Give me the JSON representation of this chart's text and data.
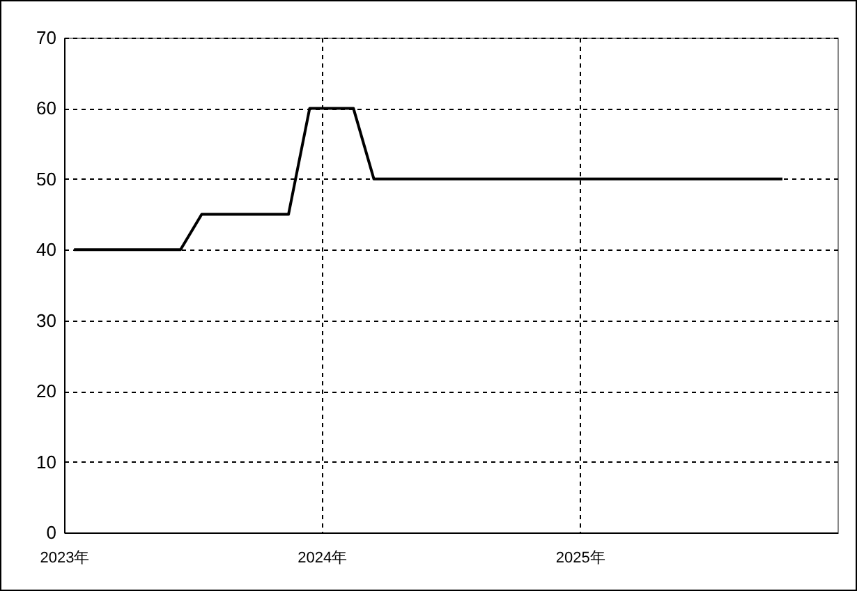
{
  "chart_data": {
    "type": "line",
    "x": [
      "2023-01-15",
      "2023-06-15",
      "2023-07-15",
      "2023-11-15",
      "2023-12-15",
      "2024-02-15",
      "2024-03-15",
      "2025-10-15"
    ],
    "series": [
      {
        "color": "#000000",
        "values": [
          40,
          40,
          45,
          45,
          60,
          60,
          50,
          50
        ]
      }
    ],
    "xlim": [
      "2023-01-01",
      "2026-01-01"
    ],
    "xticks": [
      {
        "value": "2023-01-01",
        "label": "2023年"
      },
      {
        "value": "2024-01-01",
        "label": "2024年"
      },
      {
        "value": "2025-01-01",
        "label": "2025年"
      }
    ],
    "ylim": [
      0,
      70
    ],
    "yticks": [
      0,
      10,
      20,
      30,
      40,
      50,
      60,
      70
    ],
    "grid": true,
    "marker": "none",
    "line_style": "solid"
  }
}
